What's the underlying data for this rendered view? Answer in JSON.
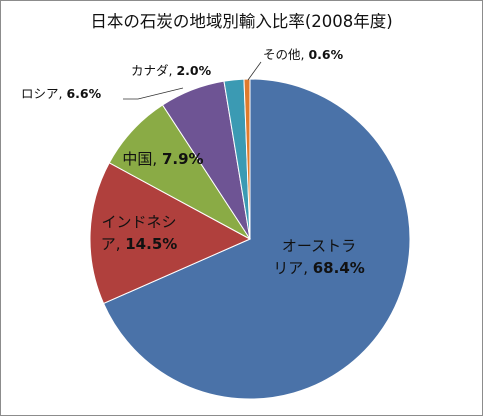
{
  "chart_data": {
    "type": "pie",
    "title": "日本の石炭の地域別輸入比率(2008年度)",
    "start_angle_deg": 0,
    "direction": "clockwise",
    "slices": [
      {
        "name": "オーストラリア",
        "value": 68.4,
        "value_label": "68.4%",
        "color": "#4a72a8"
      },
      {
        "name": "インドネシア",
        "value": 14.5,
        "value_label": "14.5%",
        "color": "#b0403d"
      },
      {
        "name": "中国",
        "value": 7.9,
        "value_label": "7.9%",
        "color": "#8aab45"
      },
      {
        "name": "ロシア",
        "value": 6.6,
        "value_label": "6.6%",
        "color": "#6e5494"
      },
      {
        "name": "カナダ",
        "value": 2.0,
        "value_label": "2.0%",
        "color": "#3b9ab3"
      },
      {
        "name": "その他",
        "value": 0.6,
        "value_label": "0.6%",
        "color": "#e07b2c"
      }
    ]
  }
}
